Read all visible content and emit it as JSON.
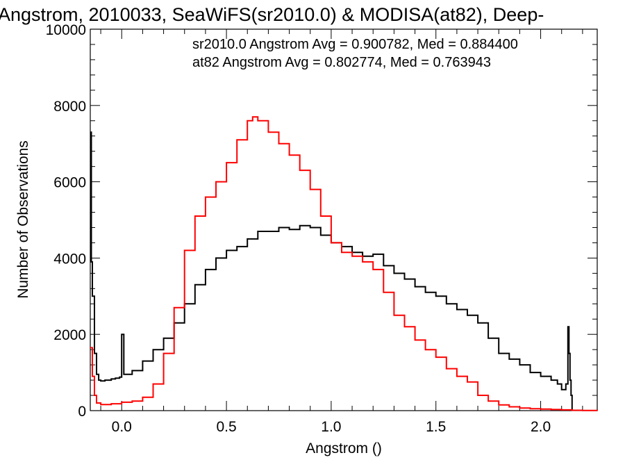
{
  "chart_data": {
    "type": "line",
    "title": "Angstrom, 2010033, SeaWiFS(sr2010.0) & MODISA(at82), Deep-",
    "xlabel": "Angstrom ()",
    "ylabel": "Number of Observations",
    "xlim": [
      -0.15,
      2.27
    ],
    "ylim": [
      0,
      10000
    ],
    "x_ticks": [
      0.0,
      0.5,
      1.0,
      1.5,
      2.0
    ],
    "x_tick_labels": [
      "0.0",
      "0.5",
      "1.0",
      "1.5",
      "2.0"
    ],
    "y_ticks": [
      0,
      2000,
      4000,
      6000,
      8000,
      10000
    ],
    "y_tick_labels": [
      "0",
      "2000",
      "4000",
      "6000",
      "8000",
      "10000"
    ],
    "grid": false,
    "annotations": [
      {
        "text": "sr2010.0 Angstrom Avg = 0.900782, Med = 0.884400",
        "color": "#000000"
      },
      {
        "text": "at82 Angstrom Avg = 0.802774, Med = 0.763943",
        "color": "#ff0000"
      }
    ],
    "series": [
      {
        "color": "#000000",
        "x": [
          -0.15,
          -0.145,
          -0.14,
          -0.13,
          -0.12,
          -0.11,
          -0.1,
          -0.08,
          -0.05,
          -0.03,
          -0.01,
          0.0,
          0.01,
          0.02,
          0.05,
          0.1,
          0.15,
          0.2,
          0.25,
          0.3,
          0.35,
          0.4,
          0.45,
          0.5,
          0.55,
          0.6,
          0.65,
          0.7,
          0.75,
          0.8,
          0.85,
          0.9,
          0.95,
          1.0,
          1.05,
          1.1,
          1.15,
          1.2,
          1.25,
          1.3,
          1.35,
          1.4,
          1.45,
          1.5,
          1.55,
          1.6,
          1.65,
          1.7,
          1.75,
          1.8,
          1.85,
          1.9,
          1.95,
          2.0,
          2.05,
          2.08,
          2.1,
          2.12,
          2.13,
          2.135,
          2.14,
          2.145,
          2.15
        ],
        "y": [
          7300,
          3900,
          3000,
          1500,
          950,
          800,
          780,
          800,
          830,
          850,
          880,
          2000,
          950,
          950,
          1050,
          1300,
          1600,
          1900,
          2300,
          2800,
          3300,
          3700,
          4000,
          4200,
          4300,
          4500,
          4700,
          4700,
          4800,
          4750,
          4850,
          4800,
          4600,
          4400,
          4300,
          4150,
          4050,
          4100,
          3800,
          3600,
          3450,
          3250,
          3100,
          3000,
          2800,
          2650,
          2500,
          2300,
          1900,
          1500,
          1350,
          1200,
          1000,
          900,
          800,
          700,
          550,
          700,
          2200,
          1500,
          800,
          400,
          0
        ]
      },
      {
        "color": "#ff0000",
        "x": [
          -0.15,
          -0.14,
          -0.13,
          -0.12,
          -0.1,
          -0.05,
          0.0,
          0.05,
          0.1,
          0.15,
          0.2,
          0.25,
          0.3,
          0.35,
          0.4,
          0.45,
          0.5,
          0.55,
          0.6,
          0.625,
          0.65,
          0.7,
          0.75,
          0.8,
          0.85,
          0.9,
          0.95,
          1.0,
          1.05,
          1.1,
          1.15,
          1.2,
          1.25,
          1.3,
          1.35,
          1.4,
          1.45,
          1.5,
          1.55,
          1.6,
          1.65,
          1.7,
          1.75,
          1.8,
          1.85,
          1.9,
          1.95,
          2.0,
          2.05,
          2.1,
          2.15,
          2.2,
          2.27
        ],
        "y": [
          1650,
          900,
          400,
          200,
          160,
          180,
          220,
          250,
          350,
          700,
          1500,
          2700,
          4200,
          5100,
          5600,
          6000,
          6500,
          7100,
          7600,
          7700,
          7600,
          7300,
          7000,
          6700,
          6300,
          5800,
          5100,
          4400,
          4150,
          4050,
          3900,
          3700,
          3100,
          2500,
          2200,
          1850,
          1600,
          1400,
          1100,
          900,
          750,
          400,
          250,
          150,
          100,
          70,
          50,
          40,
          30,
          20,
          10,
          5,
          0
        ]
      }
    ]
  }
}
